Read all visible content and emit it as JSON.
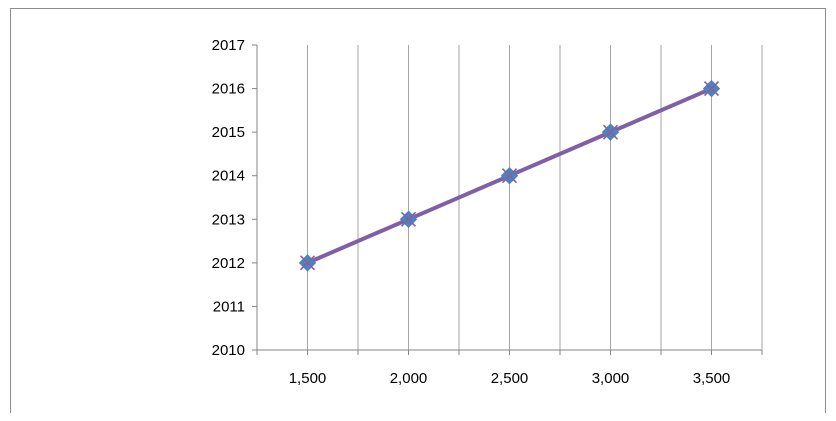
{
  "chart_data": {
    "type": "line",
    "title": "",
    "xlabel": "",
    "ylabel": "",
    "x_tick_labels": [
      "1,500",
      "2,000",
      "2,500",
      "3,000",
      "3,500"
    ],
    "y_tick_labels": [
      "2010",
      "2011",
      "2012",
      "2013",
      "2014",
      "2015",
      "2016",
      "2017"
    ],
    "xlim": [
      1250,
      3750
    ],
    "ylim": [
      2010,
      2017
    ],
    "grid": "vertical",
    "legend": "none",
    "series": [
      {
        "x": [
          1500,
          2000,
          2500,
          3000,
          3500
        ],
        "values": [
          2012,
          2013,
          2014,
          2015,
          2016
        ],
        "line_color": "#7f5fa6",
        "marker": "diamond",
        "marker_color": "#4f81bd",
        "marker2": "x",
        "marker2_color": "#8064a2"
      }
    ]
  }
}
